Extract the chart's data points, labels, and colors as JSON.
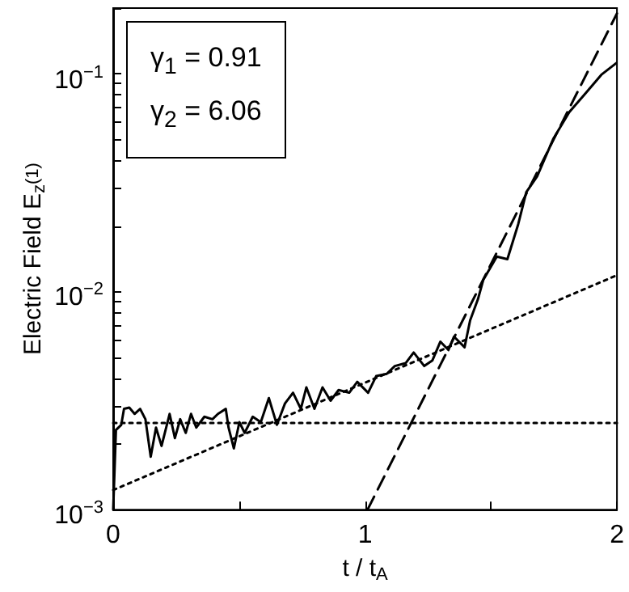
{
  "chart_data": {
    "type": "line",
    "xlabel": "t / t$_{A}$",
    "ylabel": "Electric Field E$_{z}$$^{(1)}$",
    "annotations": [
      "γ$_{1}$ = 0.91",
      "γ$_{2}$ = 6.06"
    ],
    "log": "y",
    "grid": false,
    "xlim": [
      0,
      2
    ],
    "xticks": [
      0,
      {
        "value": 0.5,
        "label": null
      },
      1,
      {
        "value": 1.5,
        "label": null
      },
      2
    ],
    "ylim": [
      0.001,
      0.2
    ],
    "yticks": [
      {
        "value": 0.001,
        "label": "10$^{−3}$"
      },
      {
        "value": 0.002,
        "label": null
      },
      {
        "value": 0.003,
        "label": null
      },
      {
        "value": 0.004,
        "label": null
      },
      {
        "value": 0.005,
        "label": null
      },
      {
        "value": 0.006,
        "label": null
      },
      {
        "value": 0.007,
        "label": null
      },
      {
        "value": 0.008,
        "label": null
      },
      {
        "value": 0.009,
        "label": null
      },
      {
        "value": 0.01,
        "label": "10$^{−2}$"
      },
      {
        "value": 0.02,
        "label": null
      },
      {
        "value": 0.03,
        "label": null
      },
      {
        "value": 0.04,
        "label": null
      },
      {
        "value": 0.05,
        "label": null
      },
      {
        "value": 0.06,
        "label": null
      },
      {
        "value": 0.07,
        "label": null
      },
      {
        "value": 0.08,
        "label": null
      },
      {
        "value": 0.09,
        "label": null
      },
      {
        "value": 0.1,
        "label": "10$^{−1}$"
      },
      {
        "value": 0.2,
        "label": null
      }
    ],
    "marker": "none",
    "series": [
      {
        "color": "#000000",
        "line_style": "solid",
        "x": [
          0,
          0.011,
          0.032,
          0.043,
          0.064,
          0.085,
          0.107,
          0.128,
          0.149,
          0.17,
          0.192,
          0.224,
          0.245,
          0.266,
          0.288,
          0.309,
          0.33,
          0.362,
          0.394,
          0.416,
          0.447,
          0.458,
          0.479,
          0.501,
          0.522,
          0.554,
          0.586,
          0.618,
          0.65,
          0.682,
          0.714,
          0.745,
          0.767,
          0.799,
          0.831,
          0.863,
          0.895,
          0.937,
          0.969,
          1.012,
          1.044,
          1.086,
          1.118,
          1.161,
          1.193,
          1.235,
          1.267,
          1.299,
          1.331,
          1.353,
          1.395,
          1.417,
          1.448,
          1.469,
          1.523,
          1.565,
          1.608,
          1.64,
          1.683,
          1.747,
          1.811,
          1.875,
          1.938,
          1.998
        ],
        "values": [
          0.001,
          0.00232,
          0.00245,
          0.0029,
          0.00294,
          0.00275,
          0.0029,
          0.0026,
          0.00175,
          0.00238,
          0.00196,
          0.00275,
          0.00213,
          0.0026,
          0.00225,
          0.00275,
          0.00238,
          0.00267,
          0.0026,
          0.00275,
          0.0029,
          0.00238,
          0.00191,
          0.00252,
          0.00225,
          0.00267,
          0.00252,
          0.00325,
          0.00245,
          0.00307,
          0.00344,
          0.0029,
          0.00364,
          0.0029,
          0.00364,
          0.00316,
          0.00354,
          0.00344,
          0.00386,
          0.00344,
          0.0041,
          0.0042,
          0.00456,
          0.0047,
          0.00526,
          0.00456,
          0.00483,
          0.0059,
          0.0054,
          0.00622,
          0.00556,
          0.00738,
          0.00923,
          0.0113,
          0.0145,
          0.0141,
          0.0204,
          0.0286,
          0.0338,
          0.0502,
          0.0667,
          0.0812,
          0.0989,
          0.112
        ]
      },
      {
        "color": "#000000",
        "line_style": "dotted",
        "x": [
          0,
          2
        ],
        "values": [
          0.0025,
          0.0025
        ]
      },
      {
        "color": "#000000",
        "line_style": "dotted",
        "x": [
          0,
          2
        ],
        "values": [
          0.00123,
          0.0119
        ]
      },
      {
        "color": "#000000",
        "line_style": "dashed",
        "x": [
          1.01,
          2
        ],
        "values": [
          0.001,
          0.189
        ]
      }
    ]
  }
}
